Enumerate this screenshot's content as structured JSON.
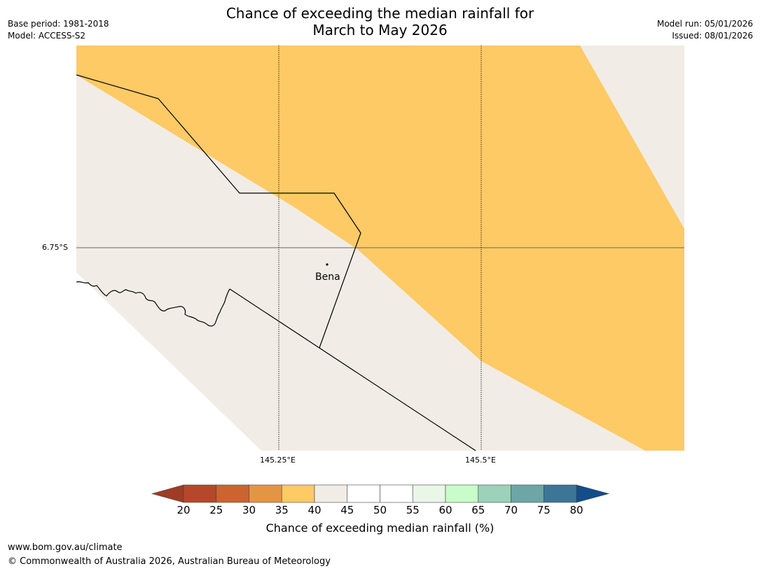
{
  "header": {
    "title_line1": "Chance of exceeding the median rainfall for",
    "title_line2": "March to May 2026",
    "base_period": "Base period: 1981-2018",
    "model": "Model: ACCESS-S2",
    "model_run": "Model run: 05/01/2026",
    "issued": "Issued: 08/01/2026"
  },
  "map": {
    "lat_label": "6.75°S",
    "lon_labels": [
      "145.25°E",
      "145.5°E"
    ],
    "place": "Bena",
    "colors": {
      "orange": "#fdca66",
      "beige": "#f1ece6"
    }
  },
  "colorbar": {
    "label": "Chance of exceeding median rainfall (%)",
    "ticks": [
      "20",
      "25",
      "30",
      "35",
      "40",
      "45",
      "50",
      "55",
      "60",
      "65",
      "70",
      "75",
      "80"
    ],
    "colors": [
      "#9e3c25",
      "#b5482a",
      "#cc6430",
      "#e39546",
      "#fdca66",
      "#f1ece6",
      "#ffffff",
      "#ffffff",
      "#e9f7e8",
      "#c8fcc9",
      "#9dd1b9",
      "#6ea6a5",
      "#3d7596",
      "#114e8a"
    ]
  },
  "footer": {
    "url": "www.bom.gov.au/climate",
    "copyright": "© Commonwealth of Australia 2026, Australian Bureau of Meteorology"
  }
}
